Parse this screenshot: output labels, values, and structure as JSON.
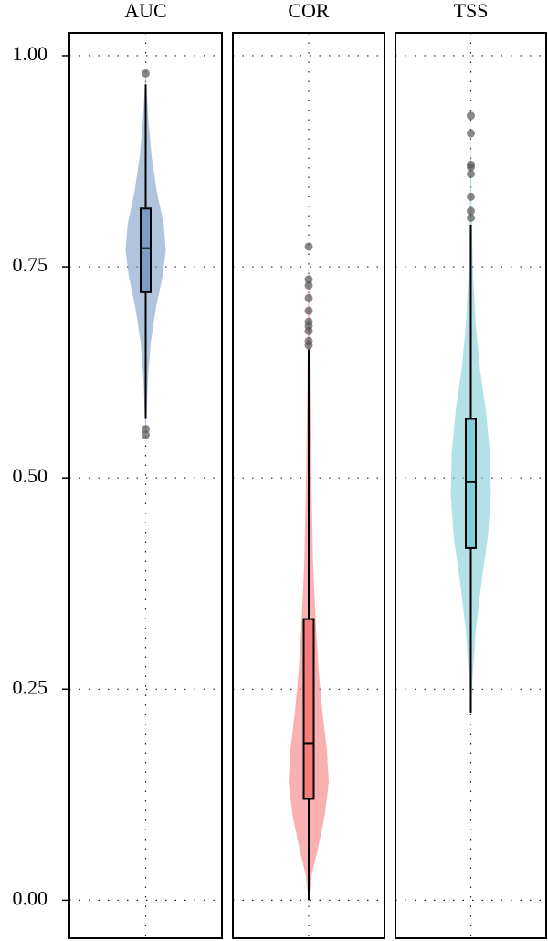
{
  "chart_data": {
    "type": "violin",
    "ylim": [
      -0.045,
      1.027
    ],
    "yticks": [
      {
        "value": 0,
        "label": "0.00"
      },
      {
        "value": 0.25,
        "label": "0.25"
      },
      {
        "value": 0.5,
        "label": "0.50"
      },
      {
        "value": 0.75,
        "label": "0.75"
      },
      {
        "value": 1,
        "label": "1.00"
      }
    ],
    "grid": true,
    "panels": [
      {
        "name": "AUC",
        "color": "#7c9cc6",
        "box": {
          "low": 0.57,
          "q1": 0.72,
          "median": 0.772,
          "q3": 0.819,
          "high": 0.966
        },
        "outliers": [
          0.979,
          0.558,
          0.551
        ],
        "violin": {
          "y": [
            0.55,
            0.58,
            0.62,
            0.66,
            0.7,
            0.74,
            0.77,
            0.8,
            0.84,
            0.88,
            0.92,
            0.95,
            0.98
          ],
          "density": [
            0,
            0.05,
            0.12,
            0.25,
            0.5,
            0.85,
            1.0,
            0.9,
            0.55,
            0.3,
            0.15,
            0.07,
            0
          ]
        }
      },
      {
        "name": "COR",
        "color": "#f47c7c",
        "box": {
          "low": 0.0,
          "q1": 0.12,
          "median": 0.186,
          "q3": 0.333,
          "high": 0.652
        },
        "outliers": [
          0.774,
          0.735,
          0.728,
          0.713,
          0.698,
          0.685,
          0.68,
          0.674,
          0.662,
          0.657
        ],
        "violin": {
          "y": [
            0.0,
            0.03,
            0.06,
            0.1,
            0.14,
            0.18,
            0.22,
            0.27,
            0.33,
            0.4,
            0.5,
            0.6,
            0.7,
            0.77
          ],
          "density": [
            0,
            0.15,
            0.45,
            0.8,
            1.0,
            0.9,
            0.7,
            0.5,
            0.35,
            0.22,
            0.13,
            0.07,
            0.03,
            0
          ]
        }
      },
      {
        "name": "TSS",
        "color": "#7fcfd8",
        "box": {
          "low": 0.222,
          "q1": 0.417,
          "median": 0.495,
          "q3": 0.57,
          "high": 0.8
        },
        "outliers": [
          0.929,
          0.908,
          0.871,
          0.868,
          0.86,
          0.833,
          0.816,
          0.808
        ],
        "violin": {
          "y": [
            0.22,
            0.26,
            0.32,
            0.38,
            0.43,
            0.48,
            0.53,
            0.58,
            0.63,
            0.68,
            0.74,
            0.8,
            0.86,
            0.93
          ],
          "density": [
            0,
            0.08,
            0.25,
            0.55,
            0.85,
            1.0,
            0.95,
            0.75,
            0.45,
            0.25,
            0.12,
            0.05,
            0.02,
            0
          ]
        }
      }
    ]
  }
}
